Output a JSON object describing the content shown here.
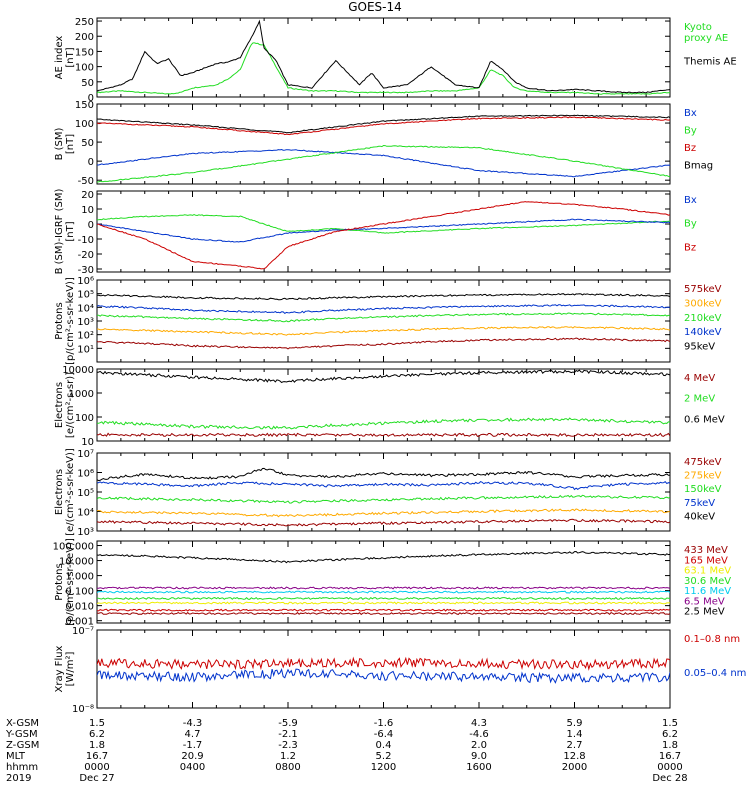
{
  "title": "GOES-14",
  "colors": {
    "black": "#000000",
    "red": "#cc0000",
    "green": "#22dd22",
    "blue": "#0033cc",
    "orange": "#ffaa00",
    "yellow": "#eeee00",
    "cyan": "#00ccee",
    "darkred": "#990000",
    "purple": "#880088"
  },
  "chart_data": [
    {
      "type": "line",
      "ylabel": "AE index\n[nT]",
      "ylim": [
        0,
        260
      ],
      "log": false,
      "ticks": [
        "0",
        "50",
        "100",
        "150",
        "200",
        "250"
      ],
      "tick_values": [
        0,
        50,
        100,
        150,
        200,
        250
      ],
      "legend": [
        {
          "label": "Kyoto\nproxy AE",
          "color": "#22dd22"
        },
        {
          "label": "Themis AE",
          "color": "#000000"
        }
      ],
      "series": [
        {
          "name": "Kyoto proxy AE",
          "color": "#22dd22",
          "x": [
            0,
            1,
            2,
            3,
            3.5,
            4,
            5,
            5.5,
            6,
            6.5,
            7,
            7.5,
            8,
            9,
            10,
            11,
            12,
            13,
            14,
            15,
            16,
            16.5,
            17,
            17.5,
            18,
            19,
            20,
            21,
            22,
            23,
            24
          ],
          "values": [
            15,
            20,
            15,
            10,
            15,
            30,
            40,
            60,
            90,
            180,
            170,
            100,
            30,
            20,
            20,
            15,
            15,
            15,
            20,
            20,
            30,
            90,
            70,
            30,
            20,
            15,
            15,
            10,
            10,
            10,
            15
          ]
        },
        {
          "name": "Themis AE",
          "color": "#000000",
          "x": [
            0,
            1,
            1.5,
            2,
            2.5,
            3,
            3.5,
            4,
            5,
            5.5,
            6,
            6.5,
            6.8,
            7,
            7.5,
            8,
            9,
            10,
            11,
            11.5,
            12,
            13,
            14,
            15,
            16,
            16.5,
            17,
            17.5,
            18,
            19,
            20,
            21,
            22,
            23,
            24
          ],
          "values": [
            20,
            40,
            60,
            150,
            110,
            125,
            70,
            80,
            110,
            115,
            130,
            200,
            250,
            160,
            120,
            40,
            30,
            120,
            40,
            80,
            30,
            40,
            100,
            40,
            30,
            120,
            90,
            50,
            30,
            20,
            25,
            20,
            15,
            15,
            25
          ]
        }
      ]
    },
    {
      "type": "line",
      "ylabel": "B (SM)\n[nT]",
      "ylim": [
        -60,
        150
      ],
      "log": false,
      "ticks": [
        "-50",
        "0",
        "50",
        "100",
        "150"
      ],
      "tick_values": [
        -50,
        0,
        50,
        100,
        150
      ],
      "legend": [
        {
          "label": "Bx",
          "color": "#0033cc"
        },
        {
          "label": "By",
          "color": "#22dd22"
        },
        {
          "label": "Bz",
          "color": "#cc0000"
        },
        {
          "label": "Bmag",
          "color": "#000000"
        }
      ],
      "series": [
        {
          "name": "Bmag",
          "color": "#000000",
          "x": [
            0,
            4,
            8,
            12,
            16,
            20,
            24
          ],
          "values": [
            110,
            95,
            75,
            105,
            118,
            120,
            115
          ]
        },
        {
          "name": "Bz",
          "color": "#cc0000",
          "x": [
            0,
            4,
            8,
            12,
            16,
            20,
            24
          ],
          "values": [
            100,
            90,
            70,
            98,
            112,
            115,
            108
          ]
        },
        {
          "name": "Bx",
          "color": "#0033cc",
          "x": [
            0,
            4,
            8,
            12,
            16,
            20,
            24
          ],
          "values": [
            -10,
            20,
            30,
            15,
            -25,
            -40,
            -10
          ]
        },
        {
          "name": "By",
          "color": "#22dd22",
          "x": [
            0,
            4,
            8,
            12,
            16,
            20,
            24
          ],
          "values": [
            -55,
            -30,
            5,
            40,
            35,
            0,
            -40
          ]
        }
      ]
    },
    {
      "type": "line",
      "ylabel": "B (SM)-IGRF (SM)\n[nT]",
      "ylim": [
        -32,
        22
      ],
      "log": false,
      "ticks": [
        "-30",
        "-20",
        "-10",
        "0",
        "10",
        "20"
      ],
      "tick_values": [
        -30,
        -20,
        -10,
        0,
        10,
        20
      ],
      "legend": [
        {
          "label": "Bx",
          "color": "#0033cc"
        },
        {
          "label": "By",
          "color": "#22dd22"
        },
        {
          "label": "Bz",
          "color": "#cc0000"
        }
      ],
      "series": [
        {
          "name": "By",
          "color": "#22dd22",
          "x": [
            0,
            2,
            4,
            6,
            8,
            10,
            12,
            16,
            20,
            24
          ],
          "values": [
            3,
            5,
            6,
            5,
            -5,
            -3,
            -6,
            -3,
            -1,
            2
          ]
        },
        {
          "name": "Bx",
          "color": "#0033cc",
          "x": [
            0,
            2,
            4,
            6,
            8,
            10,
            12,
            16,
            20,
            24
          ],
          "values": [
            0,
            -5,
            -10,
            -12,
            -6,
            -4,
            -3,
            0,
            3,
            1
          ]
        },
        {
          "name": "Bz",
          "color": "#cc0000",
          "x": [
            0,
            2,
            4,
            6,
            7,
            8,
            10,
            12,
            16,
            18,
            20,
            22,
            24
          ],
          "values": [
            0,
            -10,
            -25,
            -28,
            -30,
            -15,
            -5,
            0,
            10,
            15,
            13,
            10,
            6
          ]
        }
      ]
    },
    {
      "type": "line",
      "ylabel": "Protons\n[p/(cm²-s-sr-keV)]",
      "ylim": [
        1,
        1000000
      ],
      "log": true,
      "ticks": [
        "10¹",
        "10²",
        "10³",
        "10⁴",
        "10⁵",
        "10⁶"
      ],
      "tick_values": [
        10,
        100,
        1000,
        10000,
        100000,
        1000000
      ],
      "legend": [
        {
          "label": "575keV",
          "color": "#990000"
        },
        {
          "label": "300keV",
          "color": "#ffaa00"
        },
        {
          "label": "210keV",
          "color": "#22dd22"
        },
        {
          "label": "140keV",
          "color": "#0033cc"
        },
        {
          "label": "95keV",
          "color": "#000000"
        }
      ],
      "series": [
        {
          "name": "95keV",
          "color": "#000000",
          "x": [
            0,
            4,
            8,
            12,
            16,
            20,
            24
          ],
          "values": [
            80000,
            50000,
            40000,
            60000,
            80000,
            90000,
            70000
          ]
        },
        {
          "name": "140keV",
          "color": "#0033cc",
          "x": [
            0,
            4,
            8,
            12,
            16,
            20,
            24
          ],
          "values": [
            12000,
            6000,
            4000,
            8000,
            12000,
            14000,
            10000
          ]
        },
        {
          "name": "210keV",
          "color": "#22dd22",
          "x": [
            0,
            4,
            8,
            12,
            16,
            20,
            24
          ],
          "values": [
            2500,
            1500,
            1000,
            2000,
            3000,
            3500,
            2500
          ]
        },
        {
          "name": "300keV",
          "color": "#ffaa00",
          "x": [
            0,
            4,
            8,
            12,
            16,
            20,
            24
          ],
          "values": [
            250,
            160,
            100,
            200,
            300,
            350,
            250
          ]
        },
        {
          "name": "575keV",
          "color": "#990000",
          "x": [
            0,
            4,
            8,
            12,
            16,
            20,
            24
          ],
          "values": [
            30,
            15,
            10,
            20,
            40,
            50,
            35
          ]
        }
      ]
    },
    {
      "type": "line",
      "ylabel": "Electrons\n[e/(cm²-s-sr)]",
      "ylim": [
        10,
        10000
      ],
      "log": true,
      "ticks": [
        "10",
        "100",
        "1000",
        "10000"
      ],
      "tick_values": [
        10,
        100,
        1000,
        10000
      ],
      "legend": [
        {
          "label": "4 MeV",
          "color": "#990000"
        },
        {
          "label": "2 MeV",
          "color": "#22dd22"
        },
        {
          "label": "0.6 MeV",
          "color": "#000000"
        }
      ],
      "series": [
        {
          "name": "0.6 MeV",
          "color": "#000000",
          "x": [
            0,
            4,
            8,
            12,
            16,
            20,
            24
          ],
          "values": [
            7000,
            4500,
            3000,
            5000,
            7000,
            8000,
            6000
          ]
        },
        {
          "name": "2 MeV",
          "color": "#22dd22",
          "x": [
            0,
            4,
            8,
            12,
            16,
            20,
            24
          ],
          "values": [
            60,
            40,
            35,
            55,
            75,
            80,
            55
          ]
        },
        {
          "name": "4 MeV",
          "color": "#990000",
          "x": [
            0,
            24
          ],
          "values": [
            18,
            18
          ]
        }
      ]
    },
    {
      "type": "line",
      "ylabel": "Electrons\n[e/(cm²-s-sr-keV)]",
      "ylim": [
        1000,
        10000000
      ],
      "log": true,
      "ticks": [
        "10³",
        "10⁴",
        "10⁵",
        "10⁶",
        "10⁷"
      ],
      "tick_values": [
        1000,
        10000,
        100000,
        1000000,
        10000000
      ],
      "legend": [
        {
          "label": "475keV",
          "color": "#990000"
        },
        {
          "label": "275keV",
          "color": "#ffaa00"
        },
        {
          "label": "150keV",
          "color": "#22dd22"
        },
        {
          "label": "75keV",
          "color": "#0033cc"
        },
        {
          "label": "40keV",
          "color": "#000000"
        }
      ],
      "series": [
        {
          "name": "40keV",
          "color": "#000000",
          "x": [
            0,
            2,
            4,
            6,
            7,
            8,
            10,
            12,
            14,
            16,
            18,
            20,
            22,
            24
          ],
          "values": [
            400000,
            800000,
            500000,
            600000,
            1500000,
            700000,
            600000,
            900000,
            700000,
            800000,
            1000000,
            600000,
            700000,
            800000
          ]
        },
        {
          "name": "75keV",
          "color": "#0033cc",
          "x": [
            0,
            2,
            4,
            6,
            8,
            10,
            12,
            14,
            16,
            18,
            20,
            22,
            24
          ],
          "values": [
            300000,
            250000,
            200000,
            300000,
            250000,
            200000,
            250000,
            220000,
            300000,
            280000,
            150000,
            250000,
            300000
          ]
        },
        {
          "name": "150keV",
          "color": "#22dd22",
          "x": [
            0,
            4,
            8,
            12,
            16,
            20,
            24
          ],
          "values": [
            50000,
            40000,
            30000,
            40000,
            50000,
            60000,
            50000
          ]
        },
        {
          "name": "275keV",
          "color": "#ffaa00",
          "x": [
            0,
            4,
            8,
            12,
            16,
            20,
            24
          ],
          "values": [
            10000,
            8000,
            6000,
            8000,
            10000,
            12000,
            10000
          ]
        },
        {
          "name": "475keV",
          "color": "#990000",
          "x": [
            0,
            4,
            8,
            12,
            16,
            20,
            24
          ],
          "values": [
            3000,
            2500,
            2000,
            2500,
            3000,
            3500,
            3000
          ]
        }
      ]
    },
    {
      "type": "line",
      "ylabel": "Protons\n[p/(cm²-s-sr-keV)]",
      "ylim": [
        0.0007,
        200
      ],
      "log": true,
      "ticks": [
        "0.001",
        "0.010",
        "0.100",
        "1.000",
        "10.000",
        "100.000"
      ],
      "tick_values": [
        0.001,
        0.01,
        0.1,
        1,
        10,
        100
      ],
      "legend": [
        {
          "label": "433 MeV",
          "color": "#990000"
        },
        {
          "label": "165 MeV",
          "color": "#cc0000"
        },
        {
          "label": "63.1 MeV",
          "color": "#eeee00"
        },
        {
          "label": "30.6 MeV",
          "color": "#22dd22"
        },
        {
          "label": "11.6 MeV",
          "color": "#00ccee"
        },
        {
          "label": "6.5 MeV",
          "color": "#880088"
        },
        {
          "label": "2.5 MeV",
          "color": "#000000"
        }
      ],
      "series": [
        {
          "name": "2.5 MeV",
          "color": "#000000",
          "x": [
            0,
            4,
            8,
            12,
            16,
            20,
            24
          ],
          "values": [
            25,
            15,
            8,
            15,
            25,
            35,
            25
          ]
        },
        {
          "name": "6.5 MeV",
          "color": "#880088",
          "x": [
            0,
            24
          ],
          "values": [
            0.15,
            0.15
          ]
        },
        {
          "name": "11.6 MeV",
          "color": "#00ccee",
          "x": [
            0,
            24
          ],
          "values": [
            0.08,
            0.08
          ]
        },
        {
          "name": "30.6 MeV",
          "color": "#22dd22",
          "x": [
            0,
            24
          ],
          "values": [
            0.03,
            0.03
          ]
        },
        {
          "name": "63.1 MeV",
          "color": "#eeee00",
          "x": [
            0,
            24
          ],
          "values": [
            0.015,
            0.015
          ]
        },
        {
          "name": "165 MeV",
          "color": "#cc0000",
          "x": [
            0,
            24
          ],
          "values": [
            0.005,
            0.005
          ]
        },
        {
          "name": "433 MeV",
          "color": "#990000",
          "x": [
            0,
            24
          ],
          "values": [
            0.003,
            0.003
          ]
        }
      ]
    },
    {
      "type": "line",
      "ylabel": "Xray Flux\n[W/m²]",
      "ylim": [
        1e-08,
        1e-07
      ],
      "log": true,
      "ticks": [
        "10⁻⁸",
        "10⁻⁷"
      ],
      "tick_values": [
        1e-08,
        1e-07
      ],
      "legend": [
        {
          "label": "0.1–0.8 nm",
          "color": "#cc0000"
        },
        {
          "label": "0.05–0.4 nm",
          "color": "#0033cc"
        }
      ],
      "series": [
        {
          "name": "0.1–0.8 nm",
          "color": "#cc0000",
          "x": [
            0,
            4,
            8,
            12,
            16,
            20,
            24
          ],
          "values": [
            3.8e-08,
            3.6e-08,
            3.7e-08,
            3.8e-08,
            3.7e-08,
            3.6e-08,
            3.8e-08
          ]
        },
        {
          "name": "0.05–0.4 nm",
          "color": "#0033cc",
          "x": [
            0,
            4,
            8,
            12,
            16,
            20,
            24
          ],
          "values": [
            2.6e-08,
            2.5e-08,
            2.8e-08,
            2.6e-08,
            2.5e-08,
            2.4e-08,
            2.5e-08
          ]
        }
      ]
    }
  ],
  "footer": {
    "labels": [
      "X-GSM",
      "Y-GSM",
      "Z-GSM",
      "MLT",
      "hhmm",
      "2019"
    ],
    "columns": [
      [
        "1.5",
        "6.2",
        "1.8",
        "16.7",
        "0000",
        "Dec 27"
      ],
      [
        "-4.3",
        "4.7",
        "-1.7",
        "20.9",
        "0400",
        ""
      ],
      [
        "-5.9",
        "-2.1",
        "-2.3",
        "1.2",
        "0800",
        ""
      ],
      [
        "-1.6",
        "-6.4",
        "0.4",
        "5.2",
        "1200",
        ""
      ],
      [
        "4.3",
        "-4.6",
        "2.0",
        "9.0",
        "1600",
        ""
      ],
      [
        "5.9",
        "1.4",
        "2.7",
        "12.8",
        "2000",
        ""
      ],
      [
        "1.5",
        "6.2",
        "1.8",
        "16.7",
        "0000",
        "Dec 28"
      ]
    ]
  }
}
